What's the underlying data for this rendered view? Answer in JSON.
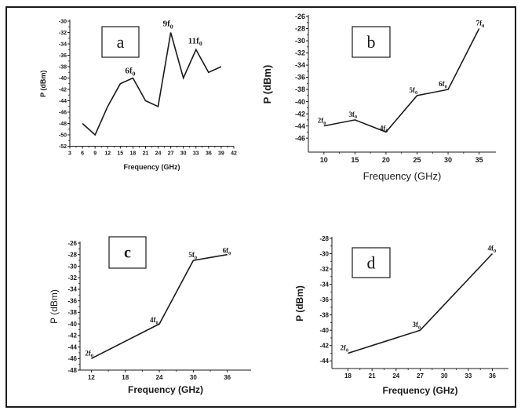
{
  "chart_data": [
    {
      "type": "line",
      "panel": "a",
      "xlabel": "Frequency (GHz)",
      "ylabel": "P (dBm)",
      "x": [
        6,
        9,
        12,
        15,
        18,
        21,
        24,
        27,
        30,
        33,
        36,
        39
      ],
      "values": [
        -48,
        -50,
        -45,
        -41,
        -40,
        -44,
        -45,
        -32,
        -40,
        -35,
        -39,
        -38
      ],
      "xticks": [
        3,
        6,
        9,
        12,
        15,
        18,
        21,
        24,
        27,
        30,
        33,
        36,
        39,
        42
      ],
      "yticks": [
        -52,
        -50,
        -48,
        -46,
        -44,
        -42,
        -40,
        -38,
        -36,
        -34,
        -32,
        -30
      ],
      "xlim": [
        3,
        42
      ],
      "ylim": [
        -52,
        -30
      ],
      "annotations": [
        {
          "text": "6f",
          "sub": "0",
          "x": 18,
          "y": -40
        },
        {
          "text": "9f",
          "sub": "0",
          "x": 27,
          "y": -32
        },
        {
          "text": "11f",
          "sub": "0",
          "x": 33,
          "y": -35
        }
      ],
      "grid": false
    },
    {
      "type": "line",
      "panel": "b",
      "xlabel": "Frequency (GHz)",
      "ylabel": "P (dBm)",
      "x": [
        10,
        15,
        20,
        25,
        30,
        35
      ],
      "values": [
        -44,
        -43,
        -45,
        -39,
        -38,
        -28
      ],
      "xticks": [
        10,
        15,
        20,
        25,
        30,
        35
      ],
      "yticks": [
        -46,
        -44,
        -42,
        -40,
        -38,
        -36,
        -34,
        -32,
        -30,
        -28,
        -26
      ],
      "xlim": [
        7.5,
        37.7
      ],
      "ylim": [
        -48.3,
        -26
      ],
      "annotations": [
        {
          "text": "2f",
          "sub": "0",
          "x": 10,
          "y": -44
        },
        {
          "text": "3f",
          "sub": "0",
          "x": 15,
          "y": -43
        },
        {
          "text": "4f",
          "sub": "0",
          "x": 20,
          "y": -45
        },
        {
          "text": "5f",
          "sub": "0",
          "x": 25,
          "y": -39
        },
        {
          "text": "6f",
          "sub": "0",
          "x": 30,
          "y": -38
        },
        {
          "text": "7f",
          "sub": "0",
          "x": 35,
          "y": -28
        }
      ],
      "grid": false
    },
    {
      "type": "line",
      "panel": "c",
      "xlabel": "Frequency (GHz)",
      "ylabel": "P (dBm)",
      "x": [
        12,
        24,
        30,
        36
      ],
      "values": [
        -46,
        -40,
        -29,
        -28
      ],
      "xticks": [
        12,
        18,
        24,
        30,
        36
      ],
      "yticks": [
        -48,
        -46,
        -44,
        -42,
        -40,
        -38,
        -36,
        -34,
        -32,
        -30,
        -28,
        -26
      ],
      "xlim": [
        10,
        40.2
      ],
      "ylim": [
        -48,
        -26
      ],
      "annotations": [
        {
          "text": "2f",
          "sub": "0",
          "x": 12,
          "y": -46
        },
        {
          "text": "4f",
          "sub": "0",
          "x": 24,
          "y": -40
        },
        {
          "text": "5f",
          "sub": "0",
          "x": 30,
          "y": -29
        },
        {
          "text": "6f",
          "sub": "0",
          "x": 36,
          "y": -28
        }
      ],
      "grid": false
    },
    {
      "type": "line",
      "panel": "d",
      "xlabel": "Frequency (GHz)",
      "ylabel": "P (dBm)",
      "x": [
        18,
        27,
        36
      ],
      "values": [
        -43,
        -40,
        -30
      ],
      "xticks": [
        18,
        21,
        24,
        27,
        30,
        33,
        36
      ],
      "yticks": [
        -44,
        -42,
        -40,
        -38,
        -36,
        -34,
        -32,
        -30,
        -28
      ],
      "xlim": [
        16,
        38
      ],
      "ylim": [
        -45,
        -28
      ],
      "annotations": [
        {
          "text": "2f",
          "sub": "0",
          "x": 18,
          "y": -43
        },
        {
          "text": "3f",
          "sub": "0",
          "x": 27,
          "y": -40
        },
        {
          "text": "4f",
          "sub": "0",
          "x": 36,
          "y": -30
        }
      ],
      "grid": false
    }
  ],
  "colors": {
    "line": "#1a1a1a",
    "frame": "#1a1a1a",
    "background": "#ffffff"
  }
}
